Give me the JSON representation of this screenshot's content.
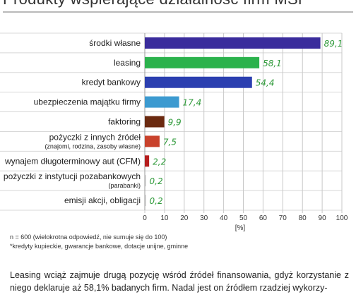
{
  "title": "Produkty wspierające działalność firm MŚP",
  "chart_data": {
    "type": "bar",
    "orientation": "horizontal",
    "categories": [
      {
        "label": "środki własne",
        "sub": ""
      },
      {
        "label": "leasing",
        "sub": ""
      },
      {
        "label": "kredyt bankowy",
        "sub": ""
      },
      {
        "label": "ubezpieczenia majątku firmy",
        "sub": ""
      },
      {
        "label": "faktoring",
        "sub": ""
      },
      {
        "label": "pożyczki z innych źródeł",
        "sub": "(znajomi, rodzina, zasoby własne)"
      },
      {
        "label": "wynajem długoterminowy aut (CFM)",
        "sub": ""
      },
      {
        "label": "pożyczki z instytucji pozabankowych",
        "sub": "(parabanki)"
      },
      {
        "label": "emisji akcji, obligacji",
        "sub": ""
      }
    ],
    "values": [
      89.1,
      58.1,
      54.4,
      17.4,
      9.9,
      7.5,
      2.2,
      0.2,
      0.2
    ],
    "value_labels": [
      "89,1",
      "58,1",
      "54,4",
      "17,4",
      "9,9",
      "7,5",
      "2,2",
      "0,2",
      "0,2"
    ],
    "colors": [
      "#3a2c9c",
      "#2bb24c",
      "#2b3fb0",
      "#3c9ad0",
      "#6b2a10",
      "#c9422c",
      "#b61e1e",
      "#bbbbbb",
      "#bbbbbb"
    ],
    "xlim": [
      0,
      100
    ],
    "xticks": [
      0,
      10,
      20,
      30,
      40,
      50,
      60,
      70,
      80,
      90,
      100
    ],
    "xlabel": "[%]",
    "grid": true
  },
  "notes": {
    "n": "n = 600 (wielokrotna odpowiedź, nie sumuje się do 100)",
    "footnote": "*kredyty kupieckie, gwarancje bankowe, dotacje unijne, gminne"
  },
  "body_text": "Leasing wciąż zajmuje drugą pozycję wśród źródeł finansowania, gdyż korzystanie z niego deklaruje aż 58,1% badanych firm. Nadal jest on źródłem rzadziej wykorzy-"
}
